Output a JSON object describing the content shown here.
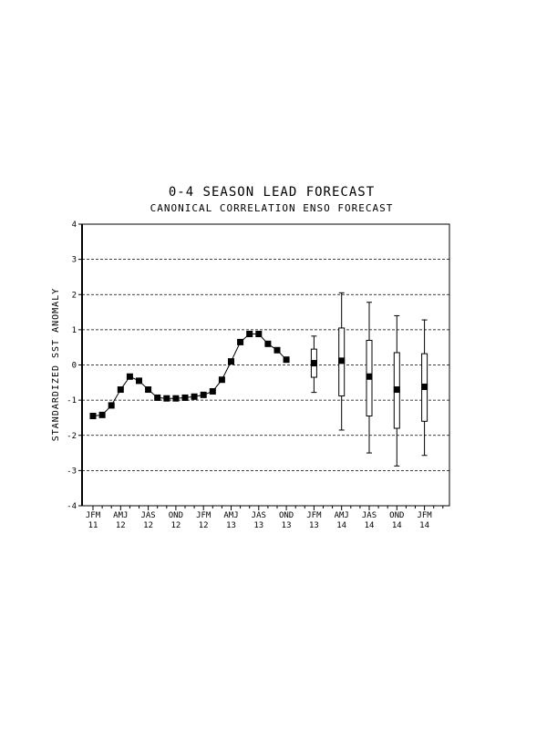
{
  "chart_data": {
    "type": "line",
    "title": "0-4 SEASON LEAD FORECAST",
    "subtitle": "CANONICAL CORRELATION ENSO FORECAST",
    "xlabel": "",
    "ylabel": "STANDARDIZED SST ANOMALY",
    "ylim": [
      -4,
      4
    ],
    "yticks": [
      -4,
      -3,
      -2,
      -1,
      0,
      1,
      2,
      3,
      4
    ],
    "grid": "horizontal dashed at 3, 2, 1, 0, -1, -2, -3",
    "x_tick_labels": [
      {
        "season": "JFM",
        "year": "11"
      },
      {
        "season": "AMJ",
        "year": "12"
      },
      {
        "season": "JAS",
        "year": "12"
      },
      {
        "season": "OND",
        "year": "12"
      },
      {
        "season": "JFM",
        "year": "12"
      },
      {
        "season": "AMJ",
        "year": "13"
      },
      {
        "season": "JAS",
        "year": "13"
      },
      {
        "season": "OND",
        "year": "13"
      },
      {
        "season": "JFM",
        "year": "13"
      },
      {
        "season": "AMJ",
        "year": "14"
      },
      {
        "season": "JAS",
        "year": "14"
      },
      {
        "season": "OND",
        "year": "14"
      },
      {
        "season": "JFM",
        "year": "14"
      }
    ],
    "observed": [
      -1.45,
      -1.42,
      -1.15,
      -0.7,
      -0.33,
      -0.45,
      -0.7,
      -0.93,
      -0.95,
      -0.95,
      -0.93,
      -0.9,
      -0.85,
      -0.75,
      -0.42,
      0.1,
      0.65,
      0.88,
      0.88,
      0.6,
      0.42,
      0.15
    ],
    "forecast": [
      {
        "median": 0.05,
        "box_low": -0.35,
        "box_high": 0.45,
        "whisker_low": -0.78,
        "whisker_high": 0.82
      },
      {
        "median": 0.12,
        "box_low": -0.88,
        "box_high": 1.05,
        "whisker_low": -1.85,
        "whisker_high": 2.05
      },
      {
        "median": -0.33,
        "box_low": -1.45,
        "box_high": 0.7,
        "whisker_low": -2.5,
        "whisker_high": 1.78
      },
      {
        "median": -0.7,
        "box_low": -1.8,
        "box_high": 0.35,
        "whisker_low": -2.87,
        "whisker_high": 1.4
      },
      {
        "median": -0.62,
        "box_low": -1.6,
        "box_high": 0.32,
        "whisker_low": -2.57,
        "whisker_high": 1.28
      }
    ]
  }
}
